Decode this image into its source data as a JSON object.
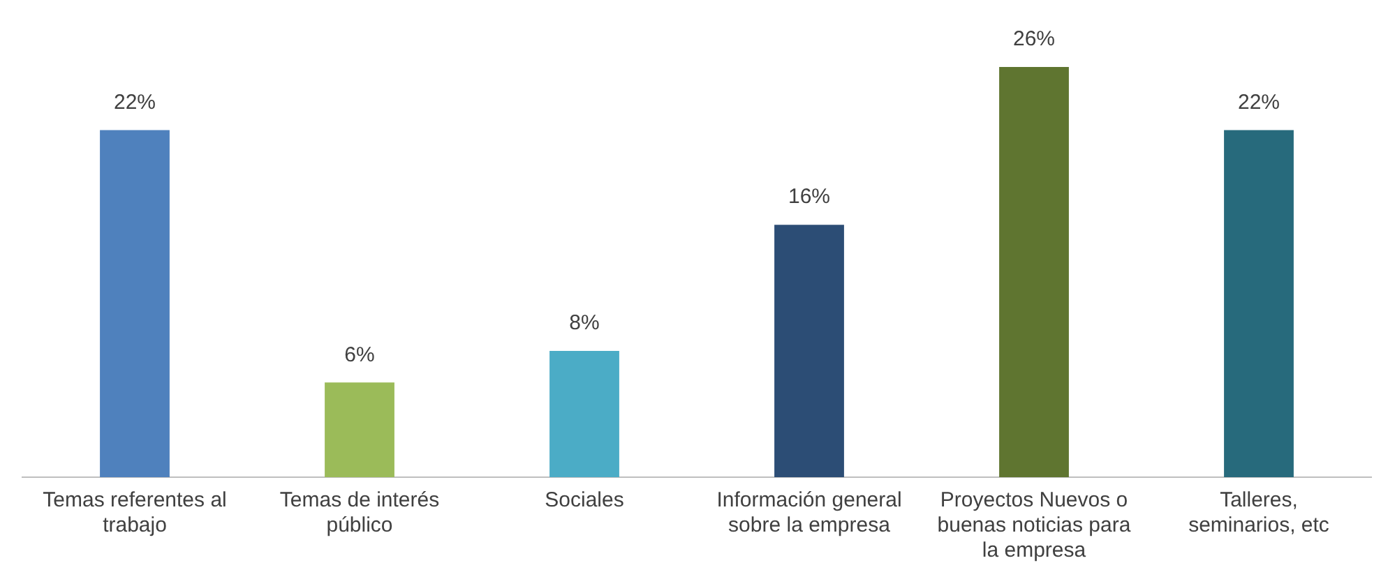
{
  "chart_data": {
    "type": "bar",
    "relative": false,
    "categories": [
      "Temas referentes al trabajo",
      "Temas de interés público",
      "Sociales",
      "Información general sobre la empresa",
      "Proyectos Nuevos o buenas noticias para la empresa",
      "Talleres, seminarios, etc"
    ],
    "values": [
      22,
      6,
      8,
      16,
      26,
      22
    ],
    "value_labels": [
      "22%",
      "6%",
      "8%",
      "16%",
      "26%",
      "22%"
    ],
    "colors": [
      "#4f81bd",
      "#9bbb59",
      "#4bacc6",
      "#2c4d75",
      "#5f7530",
      "#276a7c"
    ],
    "grid": false,
    "legend": false
  }
}
